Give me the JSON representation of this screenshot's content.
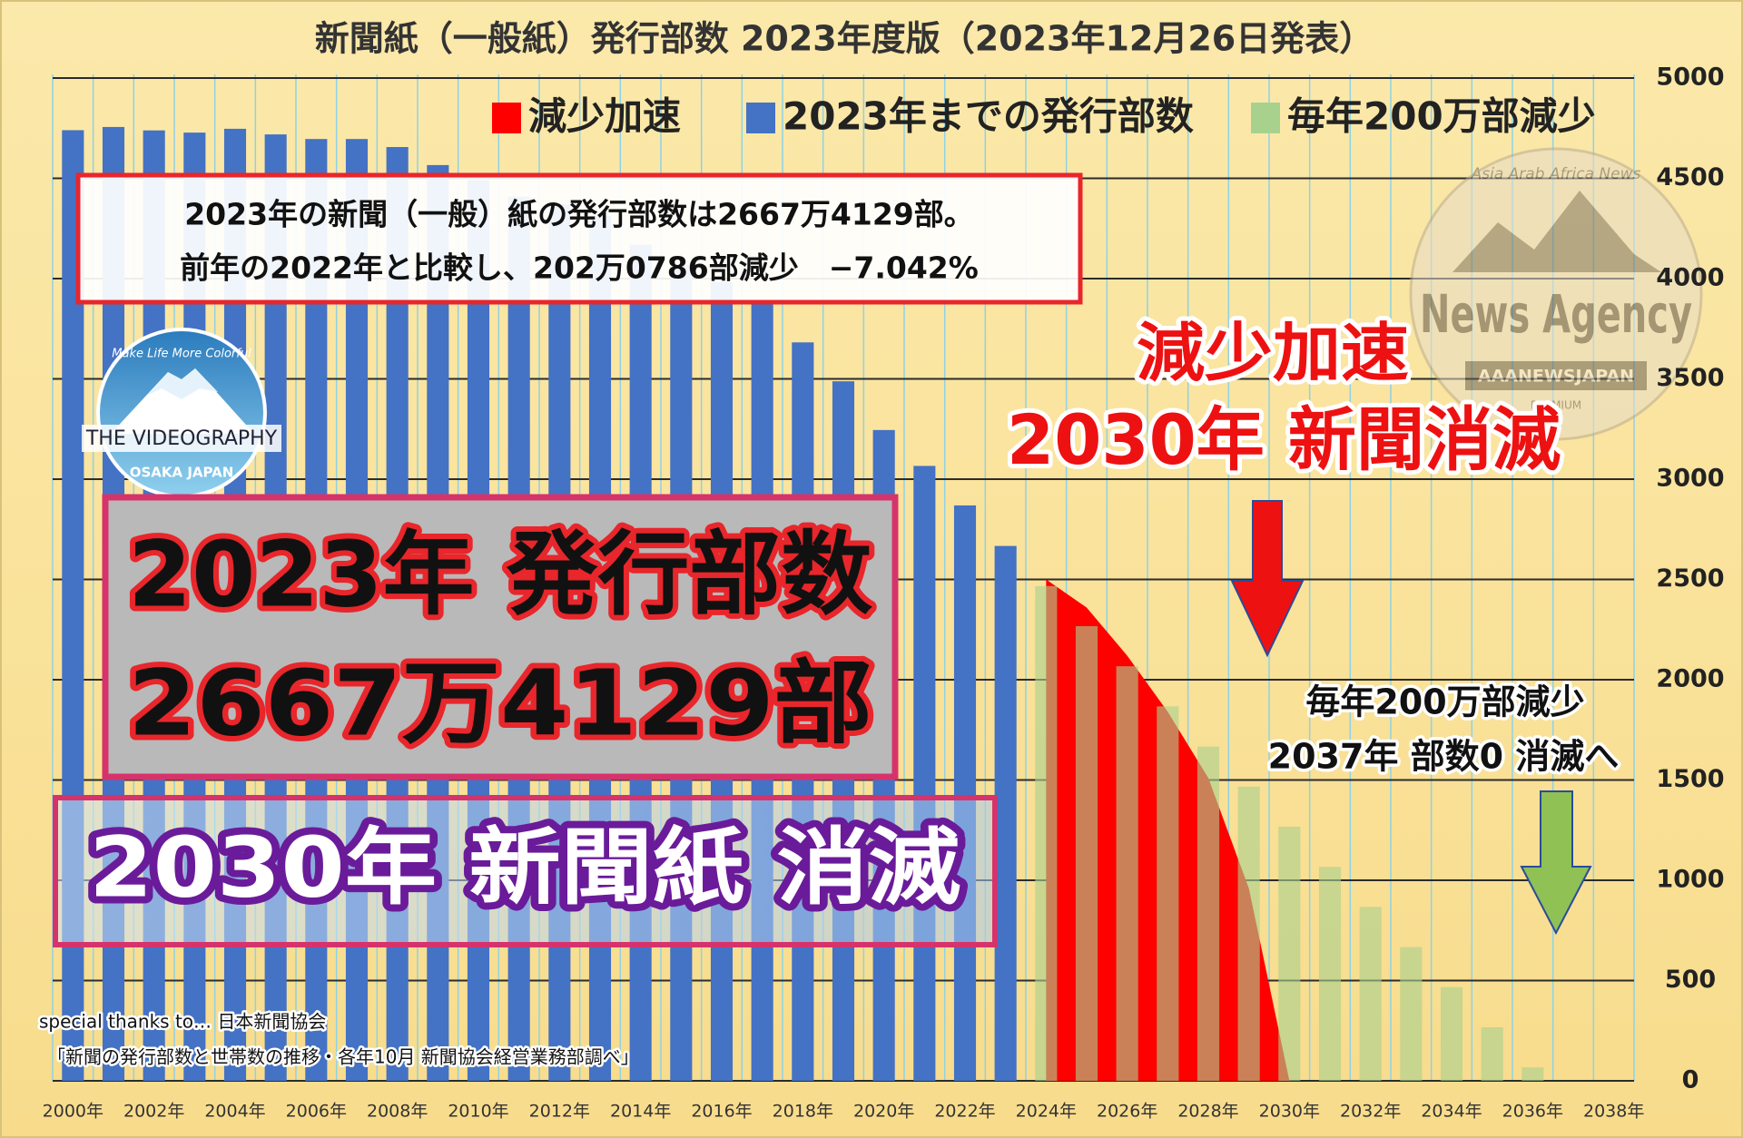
{
  "chart_data": {
    "type": "bar",
    "title": "新聞紙（一般紙）発行部数 2023年度版（2023年12月26日発表）",
    "categories": [
      "2000年",
      null,
      "2002年",
      null,
      "2004年",
      null,
      "2006年",
      null,
      "2008年",
      null,
      "2010年",
      null,
      "2012年",
      null,
      "2014年",
      null,
      "2016年",
      null,
      "2018年",
      null,
      "2020年",
      null,
      "2022年",
      null,
      "2024年",
      null,
      "2026年",
      null,
      "2028年",
      null,
      "2030年",
      null,
      "2032年",
      null,
      "2034年",
      null,
      "2036年",
      null,
      "2038年"
    ],
    "series": [
      {
        "name": "減少加速",
        "color": "#ff0000",
        "type": "area",
        "values": [
          null,
          null,
          null,
          null,
          null,
          null,
          null,
          null,
          null,
          null,
          null,
          null,
          null,
          null,
          null,
          null,
          null,
          null,
          null,
          null,
          null,
          null,
          null,
          null,
          2500,
          2360,
          2120,
          1840,
          1510,
          960,
          0,
          null,
          null,
          null,
          null,
          null,
          null,
          null,
          null
        ]
      },
      {
        "name": "2023年までの発行部数",
        "color": "#4472c4",
        "values": [
          4740,
          4756,
          4739,
          4728,
          4747,
          4719,
          4696,
          4696,
          4656,
          4566,
          4491,
          4409,
          4372,
          4313,
          4169,
          4069,
          3982,
          3876,
          3682,
          3488,
          3245,
          3066,
          2869,
          2667,
          null,
          null,
          null,
          null,
          null,
          null,
          null,
          null,
          null,
          null,
          null,
          null,
          null,
          null,
          null
        ]
      },
      {
        "name": "毎年200万部減少",
        "color": "#a9d18e",
        "values": [
          null,
          null,
          null,
          null,
          null,
          null,
          null,
          null,
          null,
          null,
          null,
          null,
          null,
          null,
          null,
          null,
          null,
          null,
          null,
          null,
          null,
          null,
          null,
          null,
          2467,
          2267,
          2067,
          1867,
          1667,
          1467,
          1267,
          1067,
          867,
          667,
          467,
          267,
          67,
          0,
          null
        ]
      }
    ],
    "ylim": [
      0,
      5000
    ],
    "yticks": [
      0,
      500,
      1000,
      1500,
      2000,
      2500,
      3000,
      3500,
      4000,
      4500,
      5000
    ],
    "grid": true,
    "y_axis_side": "right"
  },
  "annotations": {
    "summary": [
      "2023年の新聞（一般）紙の発行部数は2667万4129部。",
      "前年の2022年と比較し、202万0786部減少　−7.042%"
    ],
    "headline": [
      "2023年 発行部数",
      "2667万4129部"
    ],
    "banner": "2030年 新聞紙 消滅",
    "red_callout": [
      "減少加速",
      "2030年 新聞消滅"
    ],
    "green_callout": [
      "毎年200万部減少",
      "2037年 部数0 消滅へ"
    ],
    "credits": [
      "special thanks to… 日本新聞協会",
      "「新聞の発行部数と世帯数の推移・各年10月 新聞協会経営業務部調べ」"
    ]
  },
  "logos": {
    "left": {
      "top": "Make Life More Colorful",
      "main": "THE VIDEOGRAPHY",
      "bottom": "OSAKA JAPAN"
    },
    "right": {
      "ring": "Asia Arab Africa News",
      "main": "News Agency",
      "banner": "AAANEWSJAPAN",
      "sub": "PREMIUM"
    }
  }
}
